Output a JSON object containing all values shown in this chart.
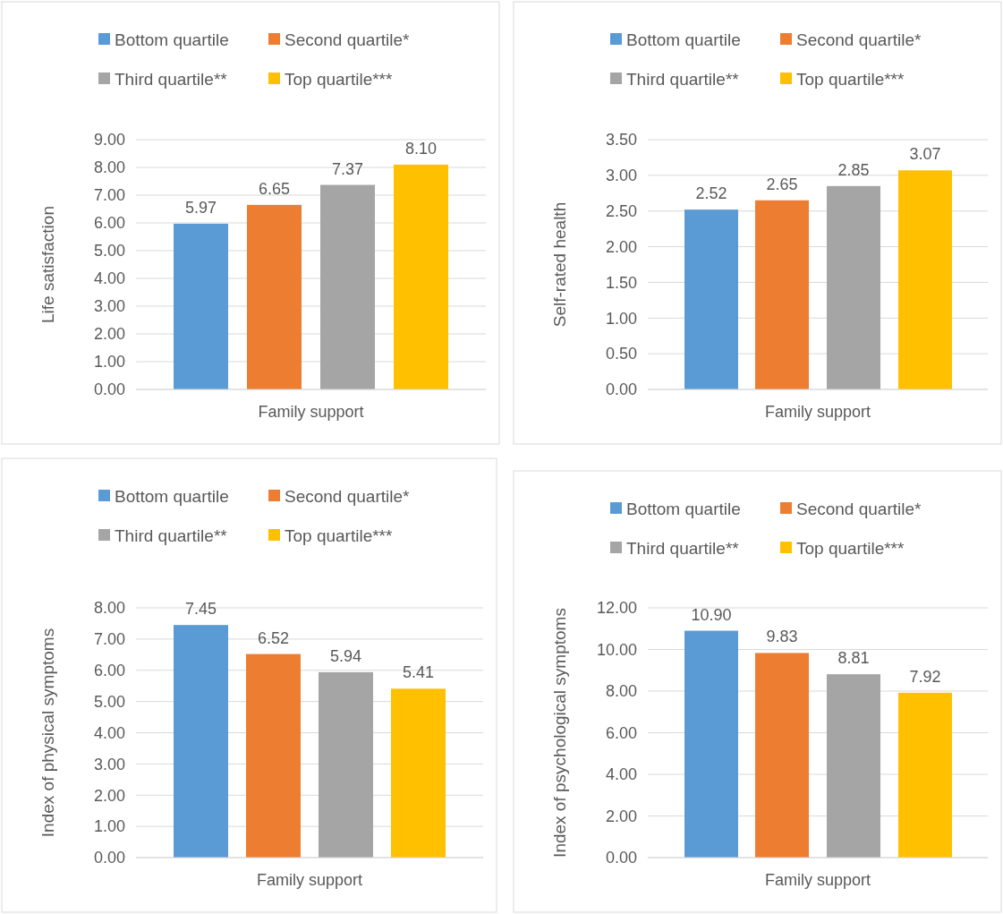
{
  "chart_data": [
    {
      "type": "bar",
      "categories": [
        "Family support"
      ],
      "ylabel": "Life satisfaction",
      "ylim": [
        0,
        9
      ],
      "yticks": [
        {
          "value": 0,
          "label": "0.00"
        },
        {
          "value": 1,
          "label": "1.00"
        },
        {
          "value": 2,
          "label": "2.00"
        },
        {
          "value": 3,
          "label": "3.00"
        },
        {
          "value": 4,
          "label": "4.00"
        },
        {
          "value": 5,
          "label": "5.00"
        },
        {
          "value": 6,
          "label": "6.00"
        },
        {
          "value": 7,
          "label": "7.00"
        },
        {
          "value": 8,
          "label": "8.00"
        },
        {
          "value": 9,
          "label": "9.00"
        }
      ],
      "grid": "y",
      "legend": "top",
      "series": [
        {
          "name": "Bottom quartile",
          "color": "#5b9bd5",
          "values": [
            5.97
          ],
          "value_labels": [
            "5.97"
          ]
        },
        {
          "name": "Second quartile*",
          "color": "#ed7d31",
          "values": [
            6.65
          ],
          "value_labels": [
            "6.65"
          ]
        },
        {
          "name": "Third quartile**",
          "color": "#a5a5a5",
          "values": [
            7.37
          ],
          "value_labels": [
            "7.37"
          ]
        },
        {
          "name": "Top quartile***",
          "color": "#ffc000",
          "values": [
            8.1
          ],
          "value_labels": [
            "8.10"
          ]
        }
      ]
    },
    {
      "type": "bar",
      "categories": [
        "Family support"
      ],
      "ylabel": "Self-rated health",
      "ylim": [
        0,
        3.5
      ],
      "yticks": [
        {
          "value": 0,
          "label": "0.00"
        },
        {
          "value": 0.5,
          "label": "0.50"
        },
        {
          "value": 1,
          "label": "1.00"
        },
        {
          "value": 1.5,
          "label": "1.50"
        },
        {
          "value": 2,
          "label": "2.00"
        },
        {
          "value": 2.5,
          "label": "2.50"
        },
        {
          "value": 3,
          "label": "3.00"
        },
        {
          "value": 3.5,
          "label": "3.50"
        }
      ],
      "grid": "y",
      "legend": "top",
      "series": [
        {
          "name": "Bottom quartile",
          "color": "#5b9bd5",
          "values": [
            2.52
          ],
          "value_labels": [
            "2.52"
          ]
        },
        {
          "name": "Second quartile*",
          "color": "#ed7d31",
          "values": [
            2.65
          ],
          "value_labels": [
            "2.65"
          ]
        },
        {
          "name": "Third quartile**",
          "color": "#a5a5a5",
          "values": [
            2.85
          ],
          "value_labels": [
            "2.85"
          ]
        },
        {
          "name": "Top quartile***",
          "color": "#ffc000",
          "values": [
            3.07
          ],
          "value_labels": [
            "3.07"
          ]
        }
      ]
    },
    {
      "type": "bar",
      "categories": [
        "Family support"
      ],
      "ylabel": "Index of physical symptoms",
      "ylim": [
        0,
        8
      ],
      "yticks": [
        {
          "value": 0,
          "label": "0.00"
        },
        {
          "value": 1,
          "label": "1.00"
        },
        {
          "value": 2,
          "label": "2.00"
        },
        {
          "value": 3,
          "label": "3.00"
        },
        {
          "value": 4,
          "label": "4.00"
        },
        {
          "value": 5,
          "label": "5.00"
        },
        {
          "value": 6,
          "label": "6.00"
        },
        {
          "value": 7,
          "label": "7.00"
        },
        {
          "value": 8,
          "label": "8.00"
        }
      ],
      "grid": "y",
      "legend": "top",
      "series": [
        {
          "name": "Bottom quartile",
          "color": "#5b9bd5",
          "values": [
            7.45
          ],
          "value_labels": [
            "7.45"
          ]
        },
        {
          "name": "Second quartile*",
          "color": "#ed7d31",
          "values": [
            6.52
          ],
          "value_labels": [
            "6.52"
          ]
        },
        {
          "name": "Third quartile**",
          "color": "#a5a5a5",
          "values": [
            5.94
          ],
          "value_labels": [
            "5.94"
          ]
        },
        {
          "name": "Top quartile***",
          "color": "#ffc000",
          "values": [
            5.41
          ],
          "value_labels": [
            "5.41"
          ]
        }
      ]
    },
    {
      "type": "bar",
      "categories": [
        "Family support"
      ],
      "ylabel": "Index of psychological symptoms",
      "ylim": [
        0,
        12
      ],
      "yticks": [
        {
          "value": 0,
          "label": "0.00"
        },
        {
          "value": 2,
          "label": "2.00"
        },
        {
          "value": 4,
          "label": "4.00"
        },
        {
          "value": 6,
          "label": "6.00"
        },
        {
          "value": 8,
          "label": "8.00"
        },
        {
          "value": 10,
          "label": "10.00"
        },
        {
          "value": 12,
          "label": "12.00"
        }
      ],
      "grid": "y",
      "legend": "top",
      "series": [
        {
          "name": "Bottom quartile",
          "color": "#5b9bd5",
          "values": [
            10.9
          ],
          "value_labels": [
            "10.90"
          ]
        },
        {
          "name": "Second quartile*",
          "color": "#ed7d31",
          "values": [
            9.83
          ],
          "value_labels": [
            "9.83"
          ]
        },
        {
          "name": "Third quartile**",
          "color": "#a5a5a5",
          "values": [
            8.81
          ],
          "value_labels": [
            "8.81"
          ]
        },
        {
          "name": "Top quartile***",
          "color": "#ffc000",
          "values": [
            7.92
          ],
          "value_labels": [
            "7.92"
          ]
        }
      ]
    }
  ]
}
